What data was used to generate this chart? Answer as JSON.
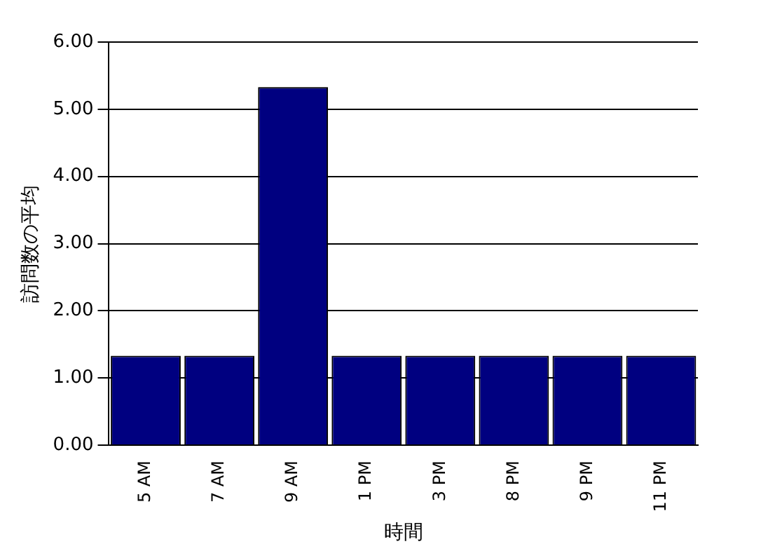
{
  "chart_data": {
    "type": "bar",
    "xlabel": "時間",
    "ylabel": "訪問数の平均",
    "categories": [
      "5 AM",
      "7 AM",
      "9 AM",
      "1 PM",
      "3 PM",
      "8 PM",
      "9 PM",
      "11 PM"
    ],
    "values": [
      1.33,
      1.33,
      5.33,
      1.33,
      1.33,
      1.33,
      1.33,
      1.33
    ],
    "color": "#000080",
    "ylim": [
      0,
      6
    ],
    "yticks": [
      {
        "value": 0,
        "label": "0.00"
      },
      {
        "value": 1,
        "label": "1.00"
      },
      {
        "value": 2,
        "label": "2.00"
      },
      {
        "value": 3,
        "label": "3.00"
      },
      {
        "value": 4,
        "label": "4.00"
      },
      {
        "value": 5,
        "label": "5.00"
      },
      {
        "value": 6,
        "label": "6.00"
      }
    ],
    "grid": "y"
  }
}
